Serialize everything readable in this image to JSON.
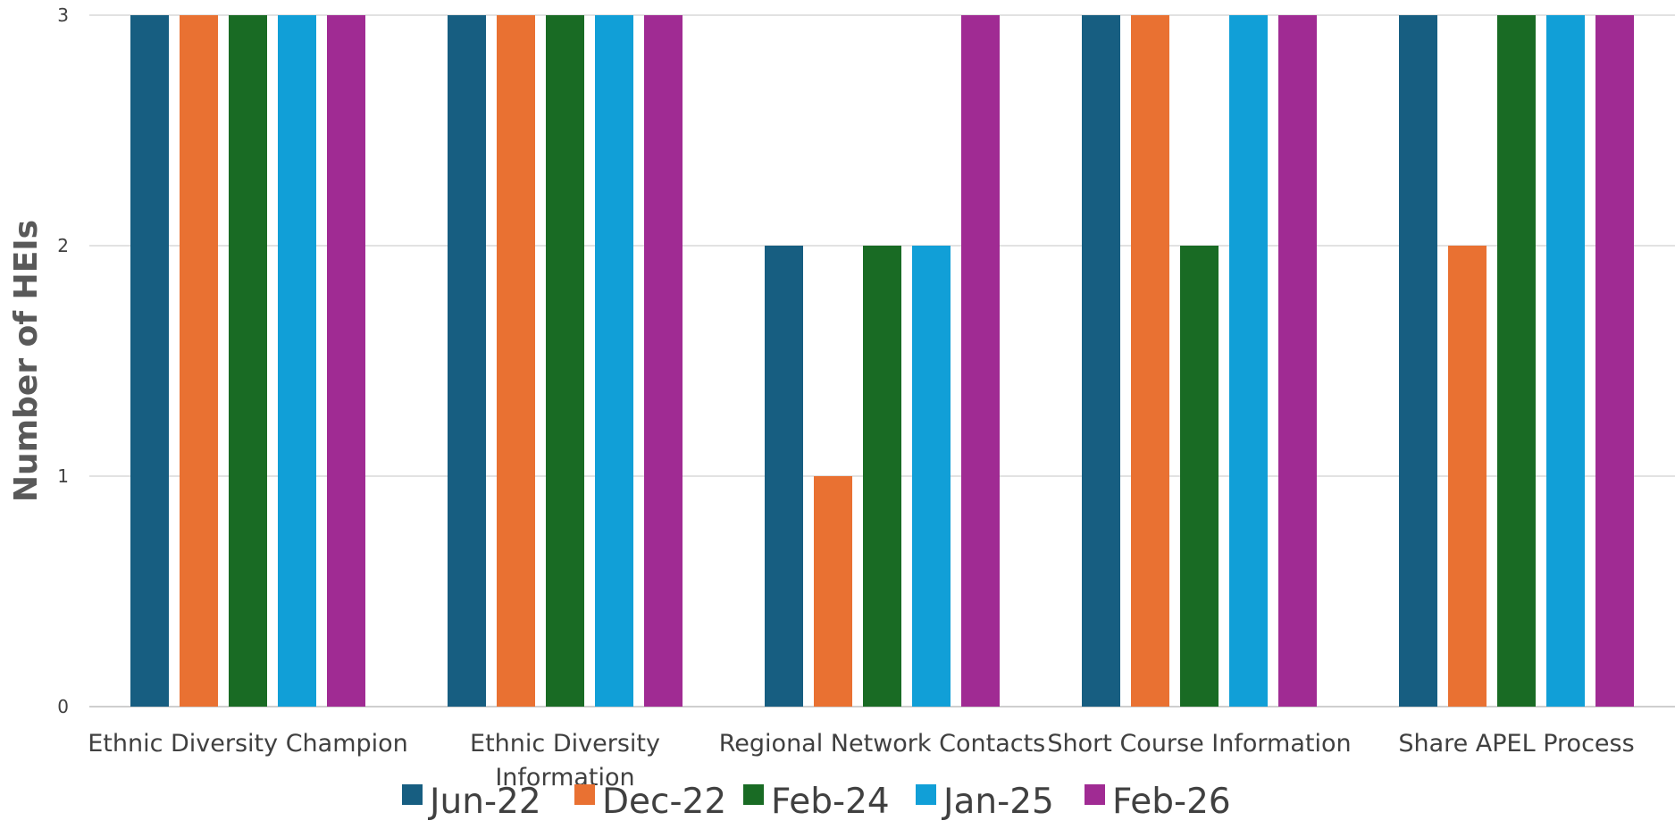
{
  "chart_data": {
    "type": "bar",
    "title": "",
    "xlabel": "",
    "ylabel": "Number of HEIs",
    "ylim": [
      0,
      3
    ],
    "yticks": [
      "0",
      "1",
      "2",
      "3"
    ],
    "grid": true,
    "legend_position": "bottom",
    "categories": [
      "Ethnic Diversity Champion",
      "Ethnic Diversity Information",
      "Regional Network Contacts",
      "Short Course Information",
      "Share APEL Process"
    ],
    "category_label_lines": [
      [
        "Ethnic Diversity Champion"
      ],
      [
        "Ethnic Diversity",
        "Information"
      ],
      [
        "Regional Network Contacts"
      ],
      [
        "Short Course Information"
      ],
      [
        "Share APEL Process"
      ]
    ],
    "series": [
      {
        "name": "Jun-22",
        "color": "#175e81",
        "values": [
          3,
          3,
          2,
          3,
          3
        ]
      },
      {
        "name": "Dec-22",
        "color": "#e97132",
        "values": [
          3,
          3,
          1,
          3,
          2
        ]
      },
      {
        "name": "Feb-24",
        "color": "#196b24",
        "values": [
          3,
          3,
          2,
          2,
          3
        ]
      },
      {
        "name": "Jan-25",
        "color": "#119fd7",
        "values": [
          3,
          3,
          2,
          3,
          3
        ]
      },
      {
        "name": "Feb-26",
        "color": "#a02b93",
        "values": [
          3,
          3,
          3,
          3,
          3
        ]
      }
    ]
  }
}
